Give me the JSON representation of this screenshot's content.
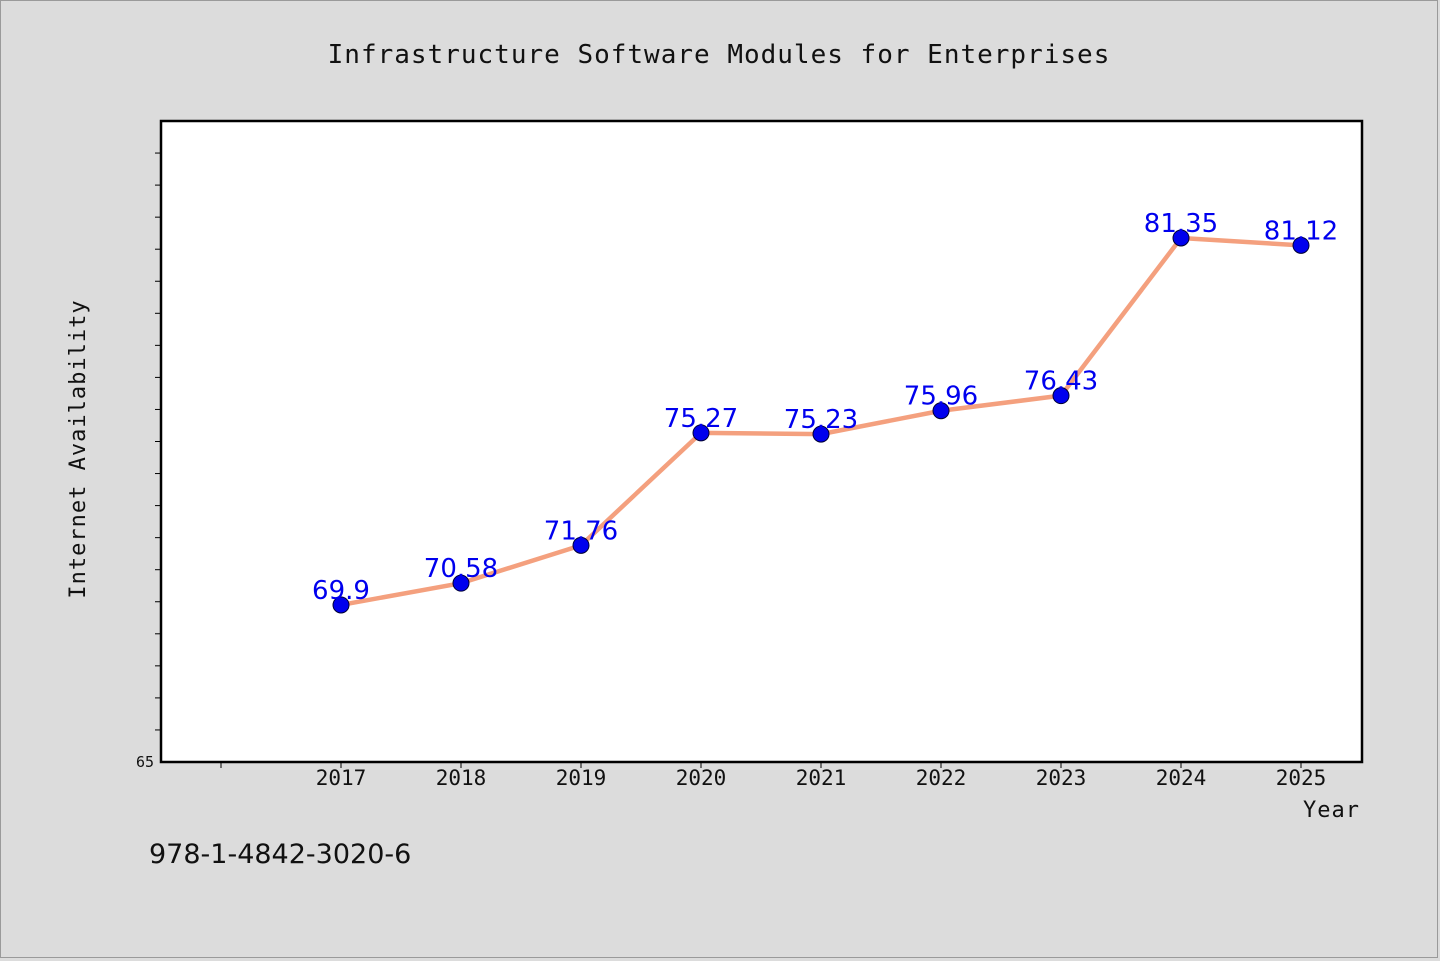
{
  "colors": {
    "background": "#dcdcdc",
    "plot_background": "#ffffff",
    "line": "#f4a07e",
    "marker": "#0000ee",
    "label": "#0000ee"
  },
  "chart_data": {
    "type": "line",
    "title": "Infrastructure Software Modules for Enterprises",
    "xlabel": "Year",
    "ylabel": "Internet Availability",
    "categories": [
      "2017",
      "2018",
      "2019",
      "2020",
      "2021",
      "2022",
      "2023",
      "2024",
      "2025"
    ],
    "series": [
      {
        "values": [
          69.9,
          70.58,
          71.76,
          75.27,
          75.23,
          75.96,
          76.43,
          81.35,
          81.12
        ],
        "labels": [
          "69.9",
          "70.58",
          "71.76",
          "75.27",
          "75.23",
          "75.96",
          "76.43",
          "81.35",
          "81.12"
        ]
      }
    ],
    "ylim": [
      65,
      85
    ],
    "y_tick_labels": [
      "65"
    ],
    "grid": false,
    "legend": "none"
  },
  "footer": {
    "isbn": "978-1-4842-3020-6"
  }
}
